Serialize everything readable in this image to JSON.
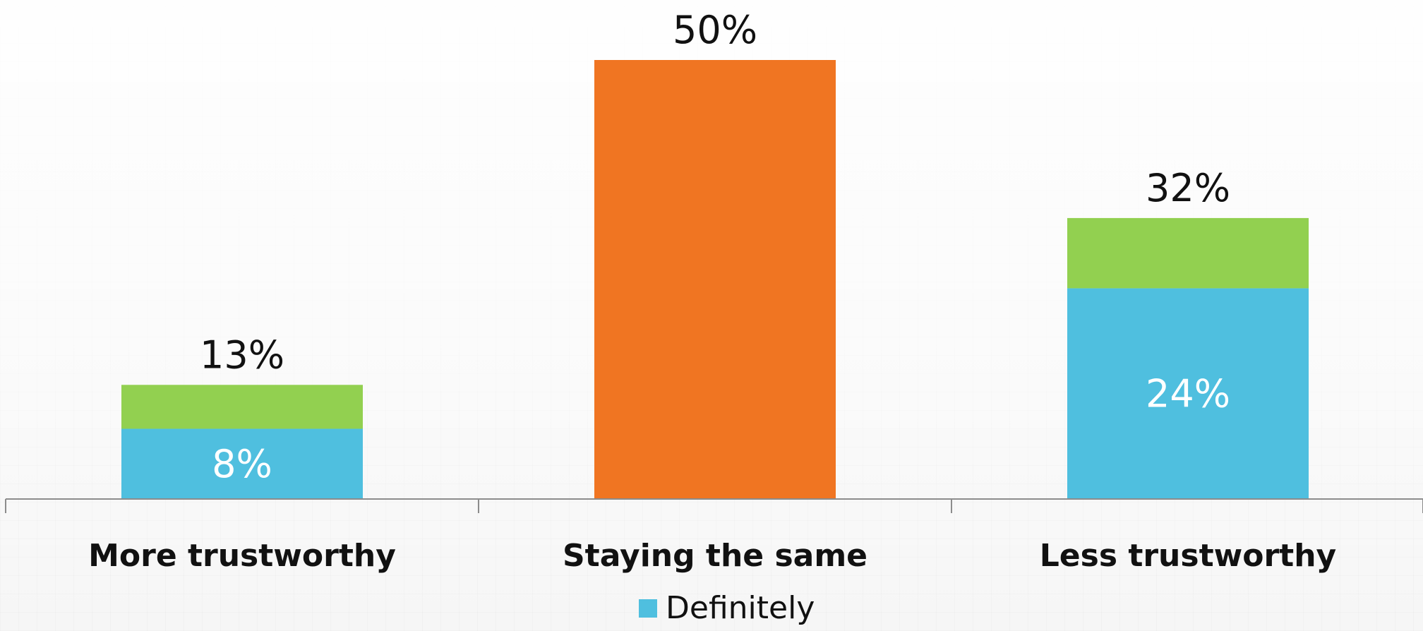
{
  "chart_data": {
    "type": "bar",
    "stacked": true,
    "categories": [
      "More trustworthy",
      "Staying the same",
      "Less trustworthy"
    ],
    "totals": [
      13,
      50,
      32
    ],
    "total_labels": [
      "13%",
      "50%",
      "32%"
    ],
    "segments": [
      {
        "category": "More trustworthy",
        "definitely": 8,
        "probably": 5,
        "definitely_label": "8%"
      },
      {
        "category": "Staying the same",
        "same": 50
      },
      {
        "category": "Less trustworthy",
        "definitely": 24,
        "probably": 8,
        "definitely_label": "24%"
      }
    ],
    "series": [
      {
        "name": "Definitely",
        "values": [
          8,
          null,
          24
        ]
      }
    ],
    "ylim": [
      0,
      50
    ],
    "grid": false,
    "legend_placement": "bottom",
    "colors": {
      "definitely": "#4fbfdf",
      "probably": "#92d050",
      "same": "#f07522",
      "axis": "#8c8c8c",
      "total_label": "#111111",
      "inner_label": "#ffffff"
    }
  },
  "legend": {
    "label": "Definitely"
  }
}
